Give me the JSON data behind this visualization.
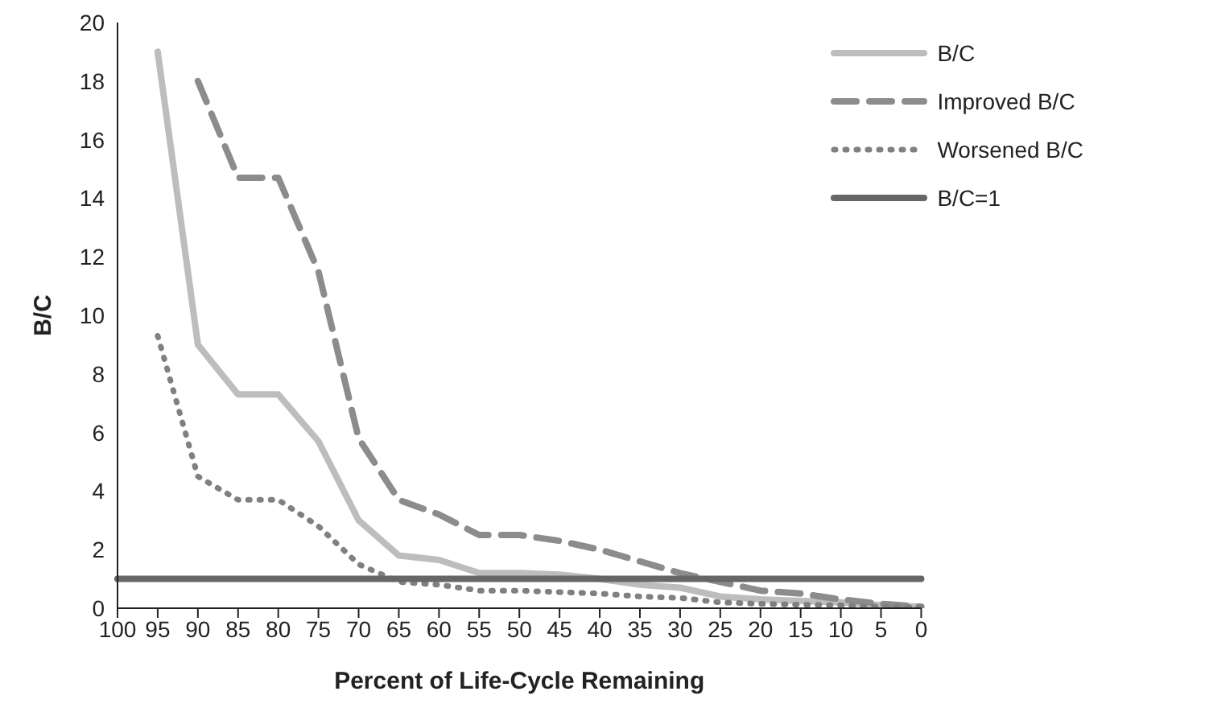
{
  "chart_data": {
    "type": "line",
    "xlabel": "Percent of Life-Cycle Remaining",
    "ylabel": "B/C",
    "categories": [
      "100",
      "95",
      "90",
      "85",
      "80",
      "75",
      "70",
      "65",
      "60",
      "55",
      "50",
      "45",
      "40",
      "35",
      "30",
      "25",
      "20",
      "15",
      "10",
      "5",
      "0"
    ],
    "series": [
      {
        "name": "B/C",
        "color": "#bdbdbd",
        "line_style": "solid",
        "values": [
          null,
          19,
          9,
          7.3,
          7.3,
          5.7,
          3,
          1.8,
          1.65,
          1.2,
          1.2,
          1.15,
          1.0,
          0.8,
          0.7,
          0.4,
          0.3,
          0.25,
          0.2,
          0.1,
          0.05
        ]
      },
      {
        "name": "Improved B/C",
        "color": "#8c8c8c",
        "line_style": "dashed",
        "values": [
          null,
          null,
          18,
          14.7,
          14.7,
          11.5,
          5.8,
          3.7,
          3.2,
          2.5,
          2.5,
          2.3,
          2.0,
          1.6,
          1.2,
          0.9,
          0.6,
          0.5,
          0.3,
          0.15,
          0.05
        ]
      },
      {
        "name": "Worsened B/C",
        "color": "#808080",
        "line_style": "dotted",
        "values": [
          null,
          9.3,
          4.5,
          3.7,
          3.7,
          2.8,
          1.5,
          0.9,
          0.8,
          0.6,
          0.6,
          0.55,
          0.5,
          0.4,
          0.35,
          0.2,
          0.15,
          0.12,
          0.1,
          0.05,
          0.03
        ]
      },
      {
        "name": "B/C=1",
        "color": "#666666",
        "line_style": "solid",
        "values": [
          1,
          1,
          1,
          1,
          1,
          1,
          1,
          1,
          1,
          1,
          1,
          1,
          1,
          1,
          1,
          1,
          1,
          1,
          1,
          1,
          1
        ]
      }
    ],
    "ylim": [
      0,
      20
    ],
    "yticks": [
      0,
      2,
      4,
      6,
      8,
      10,
      12,
      14,
      16,
      18,
      20
    ],
    "grid": false,
    "legend": "top right",
    "marker": "none"
  }
}
